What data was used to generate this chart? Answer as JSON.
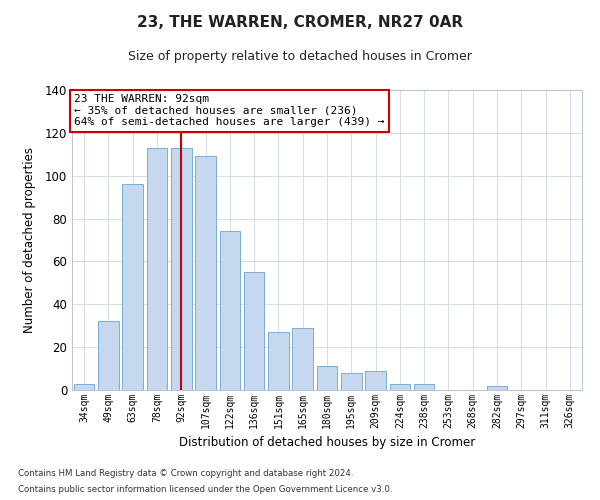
{
  "title": "23, THE WARREN, CROMER, NR27 0AR",
  "subtitle": "Size of property relative to detached houses in Cromer",
  "xlabel": "Distribution of detached houses by size in Cromer",
  "ylabel": "Number of detached properties",
  "categories": [
    "34sqm",
    "49sqm",
    "63sqm",
    "78sqm",
    "92sqm",
    "107sqm",
    "122sqm",
    "136sqm",
    "151sqm",
    "165sqm",
    "180sqm",
    "195sqm",
    "209sqm",
    "224sqm",
    "238sqm",
    "253sqm",
    "268sqm",
    "282sqm",
    "297sqm",
    "311sqm",
    "326sqm"
  ],
  "values": [
    3,
    32,
    96,
    113,
    113,
    109,
    74,
    55,
    27,
    29,
    11,
    8,
    9,
    3,
    3,
    0,
    0,
    2,
    0,
    0,
    0
  ],
  "bar_color": "#c5d8f0",
  "bar_edge_color": "#7aadd4",
  "highlight_index": 4,
  "highlight_line_color": "#cc0000",
  "ylim": [
    0,
    140
  ],
  "yticks": [
    0,
    20,
    40,
    60,
    80,
    100,
    120,
    140
  ],
  "annotation_text": "23 THE WARREN: 92sqm\n← 35% of detached houses are smaller (236)\n64% of semi-detached houses are larger (439) →",
  "annotation_box_color": "#ffffff",
  "annotation_box_edge": "#cc0000",
  "footnote1": "Contains HM Land Registry data © Crown copyright and database right 2024.",
  "footnote2": "Contains public sector information licensed under the Open Government Licence v3.0.",
  "background_color": "#ffffff",
  "grid_color": "#d0dcea"
}
